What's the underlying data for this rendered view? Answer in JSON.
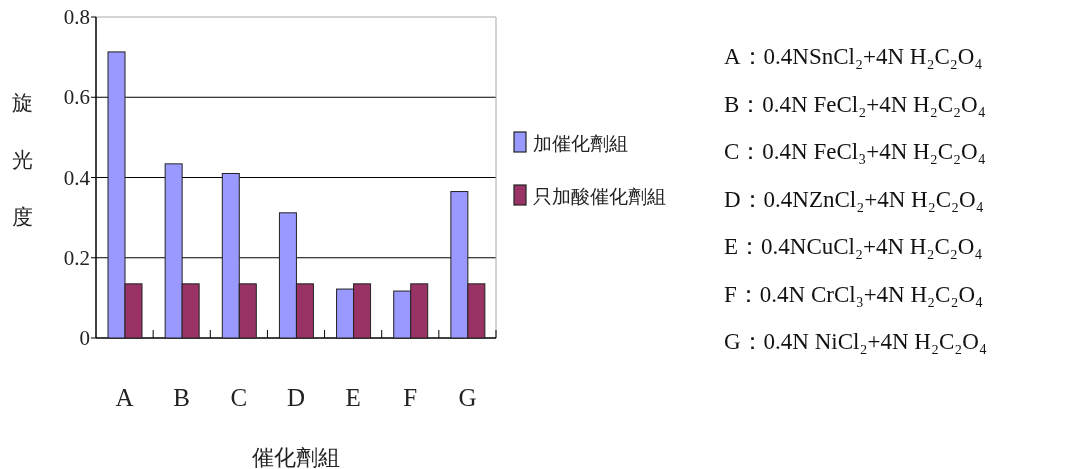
{
  "chart_data": {
    "type": "bar",
    "ylabel": "旋光度",
    "xlabel": "催化劑組",
    "categories": [
      "A",
      "B",
      "C",
      "D",
      "E",
      "F",
      "G"
    ],
    "series": [
      {
        "name": "加催化劑組",
        "color": "#9999ff",
        "values": [
          0.713,
          0.434,
          0.41,
          0.312,
          0.122,
          0.117,
          0.365
        ]
      },
      {
        "name": "只加酸催化劑組",
        "color": "#993366",
        "values": [
          0.135,
          0.135,
          0.135,
          0.135,
          0.135,
          0.135,
          0.135
        ]
      }
    ],
    "ylim": [
      0,
      0.8
    ],
    "yticks": [
      0,
      0.2,
      0.4,
      0.6,
      0.8
    ],
    "grid": "y",
    "legend": "right",
    "annotations": [
      "A：0.4NSnCl₂+4N H₂C₂O₄",
      "B：0.4N FeCl₂+4N H₂C₂O₄",
      "C：0.4N FeCl₃+4N H₂C₂O₄",
      "D：0.4NZnCl₂+4N H₂C₂O₄",
      "E：0.4NCuCl₂+4N H₂C₂O₄",
      "F：0.4N CrCl₃+4N H₂C₂O₄",
      "G：0.4N NiCl₂+4N H₂C₂O₄"
    ]
  }
}
